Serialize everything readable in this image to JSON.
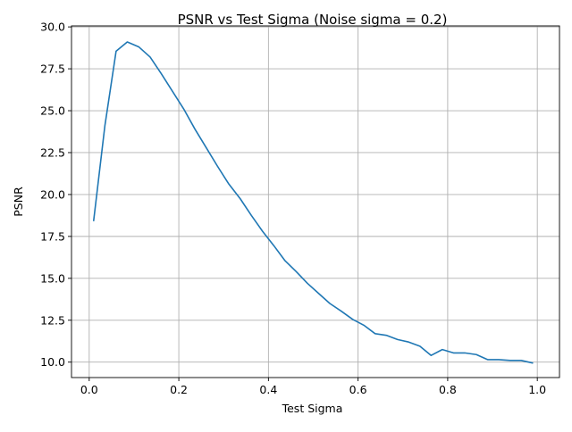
{
  "chart_data": {
    "type": "line",
    "title": "PSNR vs Test Sigma (Noise sigma = 0.2)",
    "xlabel": "Test Sigma",
    "ylabel": "PSNR",
    "xlim": [
      -0.0395,
      1.0495
    ],
    "ylim": [
      9.08,
      30.06
    ],
    "grid": true,
    "x_ticks": [
      0.0,
      0.2,
      0.4,
      0.6,
      0.8,
      1.0
    ],
    "x_tick_labels": [
      "0.0",
      "0.2",
      "0.4",
      "0.6",
      "0.8",
      "1.0"
    ],
    "y_ticks": [
      10.0,
      12.5,
      15.0,
      17.5,
      20.0,
      22.5,
      25.0,
      27.5,
      30.0
    ],
    "y_tick_labels": [
      "10.0",
      "12.5",
      "15.0",
      "17.5",
      "20.0",
      "22.5",
      "25.0",
      "27.5",
      "30.0"
    ],
    "series": [
      {
        "color": "#1f77b4",
        "x": [
          0.01,
          0.035,
          0.06,
          0.085,
          0.111,
          0.136,
          0.161,
          0.186,
          0.211,
          0.236,
          0.261,
          0.286,
          0.311,
          0.337,
          0.362,
          0.387,
          0.412,
          0.437,
          0.462,
          0.487,
          0.512,
          0.537,
          0.562,
          0.588,
          0.613,
          0.638,
          0.663,
          0.688,
          0.713,
          0.738,
          0.763,
          0.788,
          0.813,
          0.838,
          0.864,
          0.889,
          0.914,
          0.939,
          0.964,
          0.989
        ],
        "y": [
          18.45,
          24.1,
          28.55,
          29.1,
          28.8,
          28.2,
          27.2,
          26.15,
          25.1,
          23.9,
          22.8,
          21.7,
          20.65,
          19.75,
          18.75,
          17.8,
          16.95,
          16.05,
          15.4,
          14.7,
          14.1,
          13.5,
          13.05,
          12.55,
          12.2,
          11.7,
          11.6,
          11.35,
          11.2,
          10.95,
          10.4,
          10.75,
          10.55,
          10.55,
          10.45,
          10.15,
          10.15,
          10.1,
          10.1,
          9.95
        ]
      }
    ]
  }
}
